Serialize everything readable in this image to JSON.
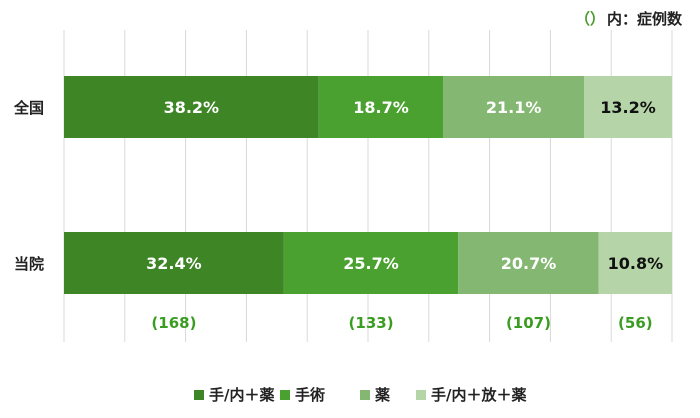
{
  "note": {
    "parens": "（）",
    "text": "内：症例数"
  },
  "chart_data": {
    "type": "bar",
    "orientation": "horizontal",
    "stacked": true,
    "normalized": true,
    "categories": [
      "全国",
      "当院"
    ],
    "series": [
      {
        "name": "手/内＋薬",
        "color": "#3d8525",
        "label_color": "#ffffff",
        "values": [
          38.2,
          32.4
        ]
      },
      {
        "name": "手術",
        "color": "#4aa12f",
        "label_color": "#ffffff",
        "values": [
          18.7,
          25.7
        ]
      },
      {
        "name": "薬",
        "color": "#84b872",
        "label_color": "#ffffff",
        "values": [
          21.1,
          20.7
        ]
      },
      {
        "name": "手/内＋放＋薬",
        "color": "#b5d5a8",
        "label_color": "#111111",
        "values": [
          13.2,
          10.8
        ]
      }
    ],
    "value_suffix": "%",
    "case_counts": {
      "category": "当院",
      "labels": [
        "(168)",
        "(133)",
        "(107)",
        "(56)"
      ],
      "color": "#3a9d22"
    },
    "grid": true,
    "legend_position": "bottom"
  }
}
